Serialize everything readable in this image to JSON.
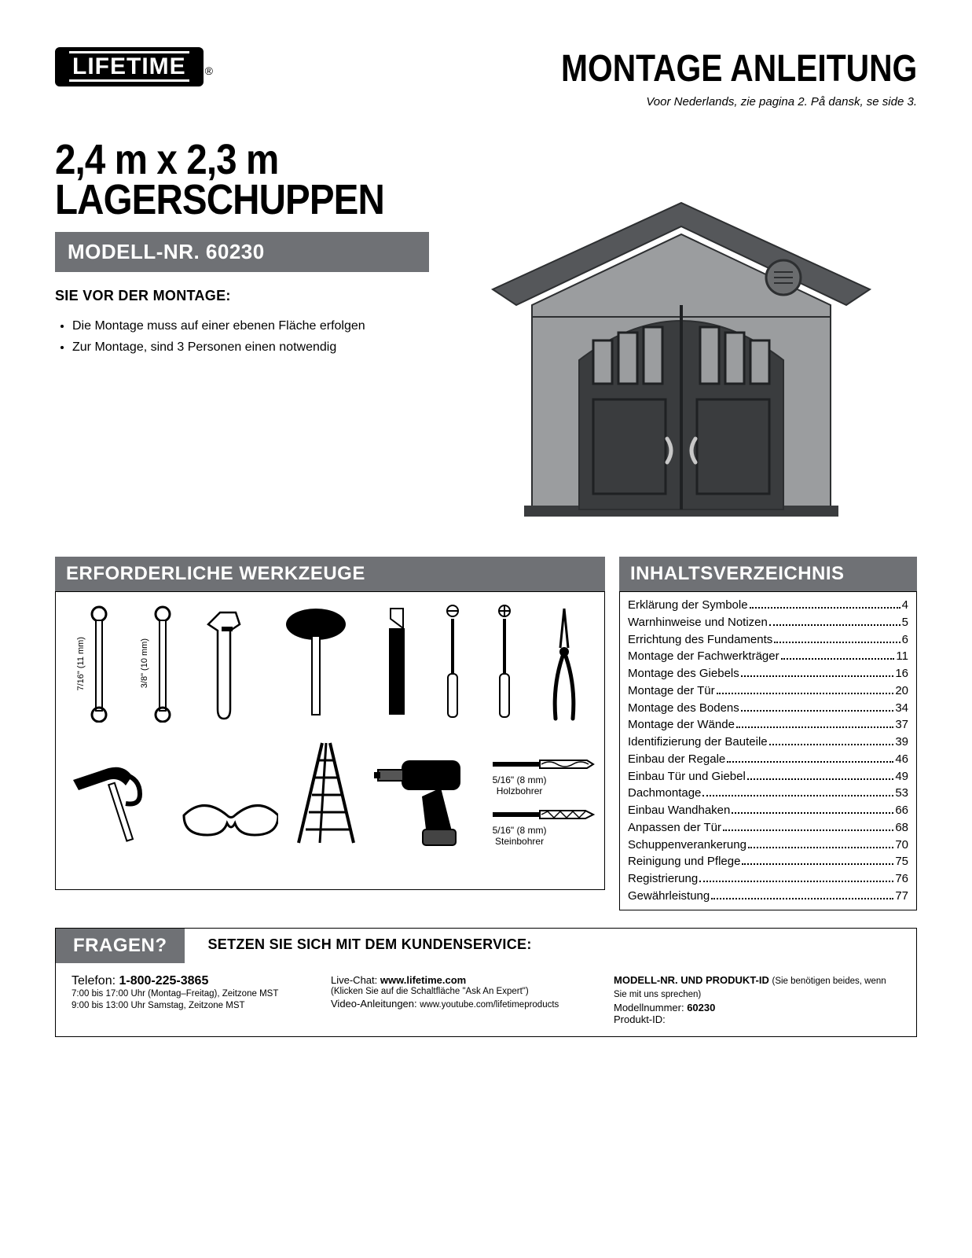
{
  "brand": "LIFETIME",
  "reg": "®",
  "header": {
    "title": "MONTAGE ANLEITUNG",
    "subtitle": "Voor Nederlands, zie pagina 2. På dansk, se side 3."
  },
  "product": {
    "dims_line1": "2,4 m x 2,3 m",
    "dims_line2": "LAGERSCHUPPEN",
    "model_label": "MODELL-NR. 60230",
    "pre_title": "SIE VOR DER MONTAGE:",
    "bullets": [
      "Die Montage muss auf einer ebenen Fläche erfolgen",
      "Zur Montage, sind 3 Personen einen notwendig"
    ]
  },
  "tools": {
    "title": "ERFORDERLICHE WERKZEUGE",
    "wrench1_label": "7/16\" (11 mm)",
    "wrench2_label": "3/8\" (10 mm)",
    "bit1_size": "5/16\" (8 mm)",
    "bit1_name": "Holzbohrer",
    "bit2_size": "5/16\" (8 mm)",
    "bit2_name": "Steinbohrer"
  },
  "shed_colors": {
    "wall": "#9b9d9f",
    "door": "#3a3c3e",
    "roof": "#55575a",
    "trim": "#2d2f31"
  },
  "toc": {
    "title": "INHALTSVERZEICHNIS",
    "items": [
      {
        "label": "Erklärung der Symbole",
        "page": "4"
      },
      {
        "label": "Warnhinweise und Notizen",
        "page": "5"
      },
      {
        "label": "Errichtung des Fundaments",
        "page": "6"
      },
      {
        "label": "Montage der Fachwerkträger",
        "page": "11"
      },
      {
        "label": "Montage des Giebels",
        "page": "16"
      },
      {
        "label": "Montage der Tür",
        "page": "20"
      },
      {
        "label": "Montage des Bodens",
        "page": "34"
      },
      {
        "label": "Montage der Wände",
        "page": "37"
      },
      {
        "label": "Identifizierung der Bauteile",
        "page": "39"
      },
      {
        "label": "Einbau der Regale",
        "page": "46"
      },
      {
        "label": "Einbau Tür und Giebel",
        "page": "49"
      },
      {
        "label": "Dachmontage",
        "page": "53"
      },
      {
        "label": "Einbau Wandhaken",
        "page": "66"
      },
      {
        "label": "Anpassen der Tür",
        "page": "68"
      },
      {
        "label": "Schuppenverankerung",
        "page": "70"
      },
      {
        "label": "Reinigung und Pflege",
        "page": "75"
      },
      {
        "label": "Registrierung",
        "page": "76"
      },
      {
        "label": "Gewährleistung",
        "page": "77"
      }
    ]
  },
  "footer": {
    "fragen": "FRAGEN?",
    "cs_title": "SETZEN SIE SICH MIT DEM KUNDENSERVICE:",
    "phone_label": "Telefon: ",
    "phone": "1-800-225-3865",
    "hours1": "7:00 bis 17:00 Uhr (Montag–Freitag), Zeitzone MST",
    "hours2": "9:00 bis 13:00 Uhr Samstag, Zeitzone MST",
    "chat_label": "Live-Chat: ",
    "chat_url": "www.lifetime.com",
    "chat_note": "(Klicken Sie auf die Schaltfläche \"Ask An Expert\")",
    "video_label": "Video-Anleitungen: ",
    "video_url": "www.youtube.com/lifetimeproducts",
    "model_id_head": "MODELL-NR. UND PRODUKT-ID ",
    "model_id_note": "(Sie benötigen beides, wenn Sie mit uns sprechen)",
    "model_num_label": "Modellnummer: ",
    "model_num": "60230",
    "prod_id_label": "Produkt-ID:"
  }
}
